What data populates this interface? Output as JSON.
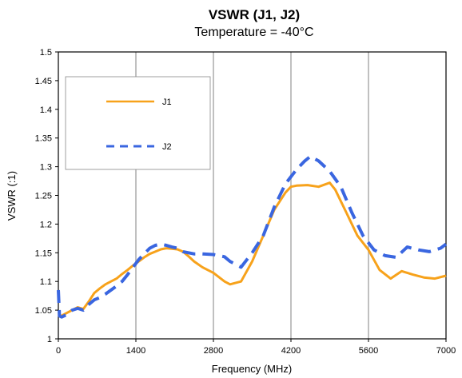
{
  "chart_data": {
    "type": "line",
    "title": "VSWR (J1, J2)",
    "subtitle": "Temperature = -40°C",
    "xlabel": "Frequency (MHz)",
    "ylabel": "VSWR (:1)",
    "xlim": [
      0,
      7000
    ],
    "ylim": [
      1,
      1.5
    ],
    "x_ticks": [
      "0",
      "1400",
      "2800",
      "4200",
      "5600",
      "7000"
    ],
    "y_ticks": [
      "1",
      "1.05",
      "1.1",
      "1.15",
      "1.2",
      "1.25",
      "1.3",
      "1.35",
      "1.4",
      "1.45",
      "1.5"
    ],
    "grid": "vertical",
    "legend": {
      "placement": "top-left"
    },
    "series": [
      {
        "name": "J1",
        "color": "#F7A21B",
        "style": "solid",
        "x": [
          0,
          50,
          150,
          250,
          350,
          450,
          550,
          650,
          750,
          850,
          950,
          1050,
          1150,
          1250,
          1350,
          1450,
          1550,
          1650,
          1750,
          1850,
          1950,
          2050,
          2150,
          2250,
          2350,
          2450,
          2600,
          2800,
          3000,
          3100,
          3300,
          3500,
          3700,
          3900,
          4100,
          4200,
          4300,
          4500,
          4700,
          4900,
          5000,
          5200,
          5400,
          5600,
          5800,
          6000,
          6200,
          6400,
          6600,
          6800,
          7000
        ],
        "y": [
          1.04,
          1.04,
          1.045,
          1.05,
          1.055,
          1.052,
          1.065,
          1.08,
          1.088,
          1.095,
          1.1,
          1.105,
          1.113,
          1.12,
          1.128,
          1.135,
          1.142,
          1.148,
          1.152,
          1.156,
          1.158,
          1.157,
          1.156,
          1.152,
          1.144,
          1.135,
          1.125,
          1.115,
          1.1,
          1.095,
          1.1,
          1.135,
          1.18,
          1.225,
          1.255,
          1.265,
          1.267,
          1.268,
          1.265,
          1.272,
          1.26,
          1.22,
          1.18,
          1.155,
          1.12,
          1.105,
          1.118,
          1.112,
          1.107,
          1.105,
          1.11
        ]
      },
      {
        "name": "J2",
        "color": "#3A66E0",
        "style": "dashed",
        "x": [
          0,
          20,
          60,
          150,
          250,
          350,
          450,
          550,
          650,
          750,
          850,
          950,
          1050,
          1150,
          1250,
          1350,
          1450,
          1550,
          1650,
          1750,
          1850,
          1950,
          2050,
          2150,
          2250,
          2350,
          2450,
          2600,
          2800,
          3000,
          3100,
          3300,
          3500,
          3700,
          3900,
          4100,
          4300,
          4450,
          4550,
          4700,
          4900,
          5100,
          5300,
          5500,
          5700,
          5900,
          6100,
          6300,
          6500,
          6700,
          6900,
          7000
        ],
        "y": [
          1.085,
          1.04,
          1.038,
          1.042,
          1.05,
          1.053,
          1.05,
          1.06,
          1.068,
          1.072,
          1.078,
          1.085,
          1.092,
          1.1,
          1.112,
          1.125,
          1.138,
          1.148,
          1.158,
          1.163,
          1.165,
          1.163,
          1.16,
          1.158,
          1.152,
          1.15,
          1.148,
          1.148,
          1.147,
          1.143,
          1.135,
          1.125,
          1.15,
          1.18,
          1.23,
          1.27,
          1.295,
          1.31,
          1.318,
          1.31,
          1.292,
          1.265,
          1.22,
          1.18,
          1.155,
          1.145,
          1.142,
          1.16,
          1.155,
          1.152,
          1.158,
          1.165
        ]
      }
    ]
  }
}
